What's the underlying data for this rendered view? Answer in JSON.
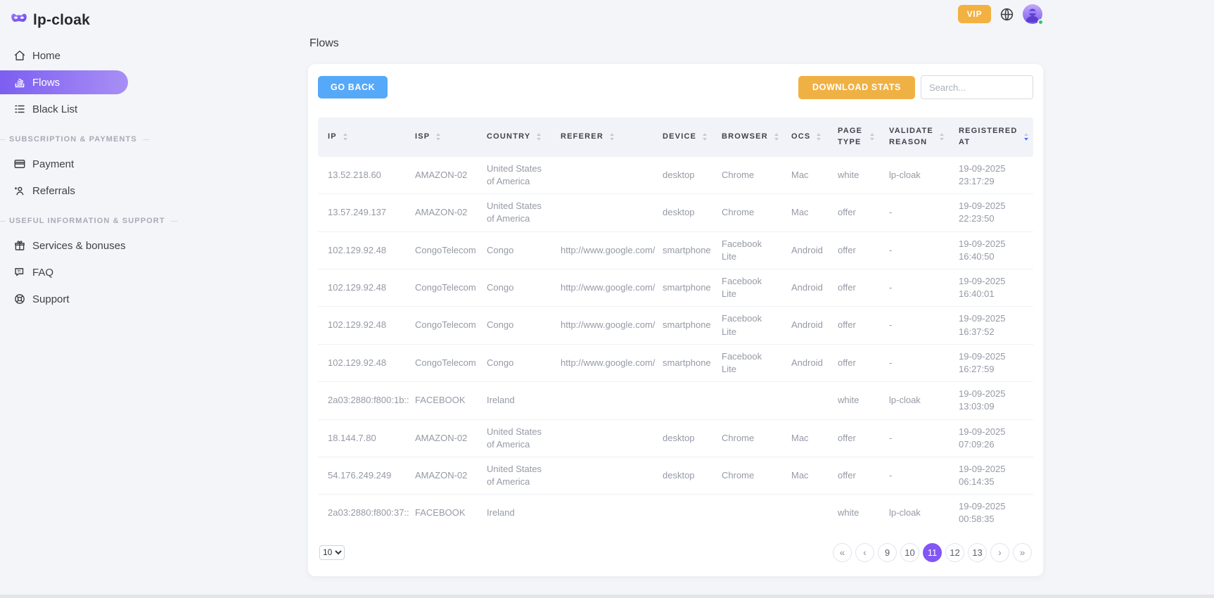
{
  "brand": {
    "name": "lp-cloak",
    "logo_icon": "mask-icon"
  },
  "topbar": {
    "vip_label": "VIP",
    "language_icon": "globe-icon",
    "avatar_status": "online"
  },
  "sidebar": {
    "sections": [
      {
        "header": "",
        "items": [
          {
            "label": "Home",
            "icon": "home-icon",
            "active": false
          },
          {
            "label": "Flows",
            "icon": "flows-icon",
            "active": true
          },
          {
            "label": "Black List",
            "icon": "black-list-icon",
            "active": false
          }
        ]
      },
      {
        "header": "SUBSCRIPTION & PAYMENTS",
        "items": [
          {
            "label": "Payment",
            "icon": "payment-icon",
            "active": false
          },
          {
            "label": "Referrals",
            "icon": "referrals-icon",
            "active": false
          }
        ]
      },
      {
        "header": "USEFUL INFORMATION & SUPPORT",
        "items": [
          {
            "label": "Services & bonuses",
            "icon": "gift-icon",
            "active": false
          },
          {
            "label": "FAQ",
            "icon": "faq-icon",
            "active": false
          },
          {
            "label": "Support",
            "icon": "support-icon",
            "active": false
          }
        ]
      }
    ]
  },
  "page": {
    "title": "Flows"
  },
  "toolbar": {
    "go_back_label": "GO BACK",
    "download_stats_label": "DOWNLOAD STATS",
    "search_placeholder": "Search..."
  },
  "table": {
    "columns": [
      {
        "key": "ip",
        "label": "IP",
        "sort": ""
      },
      {
        "key": "isp",
        "label": "ISP",
        "sort": ""
      },
      {
        "key": "country",
        "label": "COUNTRY",
        "sort": ""
      },
      {
        "key": "referer",
        "label": "REFERER",
        "sort": ""
      },
      {
        "key": "device",
        "label": "DEVICE",
        "sort": ""
      },
      {
        "key": "browser",
        "label": "BROWSER",
        "sort": ""
      },
      {
        "key": "ocs",
        "label": "OCS",
        "sort": ""
      },
      {
        "key": "page_type",
        "label": "PAGE TYPE",
        "sort": ""
      },
      {
        "key": "validate_reason",
        "label": "VALIDATE REASON",
        "sort": ""
      },
      {
        "key": "registered_at",
        "label": "REGISTERED AT",
        "sort": "desc"
      }
    ],
    "rows": [
      {
        "ip": "13.52.218.60",
        "isp": "AMAZON-02",
        "country": "United States of America",
        "referer": "",
        "device": "desktop",
        "browser": "Chrome",
        "ocs": "Mac",
        "page_type": "white",
        "validate_reason": "lp-cloak",
        "registered_at": "19-09-2025 23:17:29"
      },
      {
        "ip": "13.57.249.137",
        "isp": "AMAZON-02",
        "country": "United States of America",
        "referer": "",
        "device": "desktop",
        "browser": "Chrome",
        "ocs": "Mac",
        "page_type": "offer",
        "validate_reason": "-",
        "registered_at": "19-09-2025 22:23:50"
      },
      {
        "ip": "102.129.92.48",
        "isp": "CongoTelecom",
        "country": "Congo",
        "referer": "http://www.google.com/",
        "device": "smartphone",
        "browser": "Facebook Lite",
        "ocs": "Android",
        "page_type": "offer",
        "validate_reason": "-",
        "registered_at": "19-09-2025 16:40:50"
      },
      {
        "ip": "102.129.92.48",
        "isp": "CongoTelecom",
        "country": "Congo",
        "referer": "http://www.google.com/",
        "device": "smartphone",
        "browser": "Facebook Lite",
        "ocs": "Android",
        "page_type": "offer",
        "validate_reason": "-",
        "registered_at": "19-09-2025 16:40:01"
      },
      {
        "ip": "102.129.92.48",
        "isp": "CongoTelecom",
        "country": "Congo",
        "referer": "http://www.google.com/",
        "device": "smartphone",
        "browser": "Facebook Lite",
        "ocs": "Android",
        "page_type": "offer",
        "validate_reason": "-",
        "registered_at": "19-09-2025 16:37:52"
      },
      {
        "ip": "102.129.92.48",
        "isp": "CongoTelecom",
        "country": "Congo",
        "referer": "http://www.google.com/",
        "device": "smartphone",
        "browser": "Facebook Lite",
        "ocs": "Android",
        "page_type": "offer",
        "validate_reason": "-",
        "registered_at": "19-09-2025 16:27:59"
      },
      {
        "ip": "2a03:2880:f800:1b::",
        "isp": "FACEBOOK",
        "country": "Ireland",
        "referer": "",
        "device": "",
        "browser": "",
        "ocs": "",
        "page_type": "white",
        "validate_reason": "lp-cloak",
        "registered_at": "19-09-2025 13:03:09"
      },
      {
        "ip": "18.144.7.80",
        "isp": "AMAZON-02",
        "country": "United States of America",
        "referer": "",
        "device": "desktop",
        "browser": "Chrome",
        "ocs": "Mac",
        "page_type": "offer",
        "validate_reason": "-",
        "registered_at": "19-09-2025 07:09:26"
      },
      {
        "ip": "54.176.249.249",
        "isp": "AMAZON-02",
        "country": "United States of America",
        "referer": "",
        "device": "desktop",
        "browser": "Chrome",
        "ocs": "Mac",
        "page_type": "offer",
        "validate_reason": "-",
        "registered_at": "19-09-2025 06:14:35"
      },
      {
        "ip": "2a03:2880:f800:37::",
        "isp": "FACEBOOK",
        "country": "Ireland",
        "referer": "",
        "device": "",
        "browser": "",
        "ocs": "",
        "page_type": "white",
        "validate_reason": "lp-cloak",
        "registered_at": "19-09-2025 00:58:35"
      }
    ]
  },
  "pagination": {
    "page_size": "10",
    "page_size_options": [
      "10"
    ],
    "first_label": "«",
    "prev_label": "‹",
    "pages": [
      "9",
      "10",
      "11",
      "12",
      "13"
    ],
    "active_page": "11",
    "next_label": "›",
    "last_label": "»"
  },
  "colors": {
    "accent_purple": "#8257f5",
    "accent_blue": "#55a9f8",
    "accent_orange": "#f0b144",
    "active_sort": "#4c6ef5"
  }
}
